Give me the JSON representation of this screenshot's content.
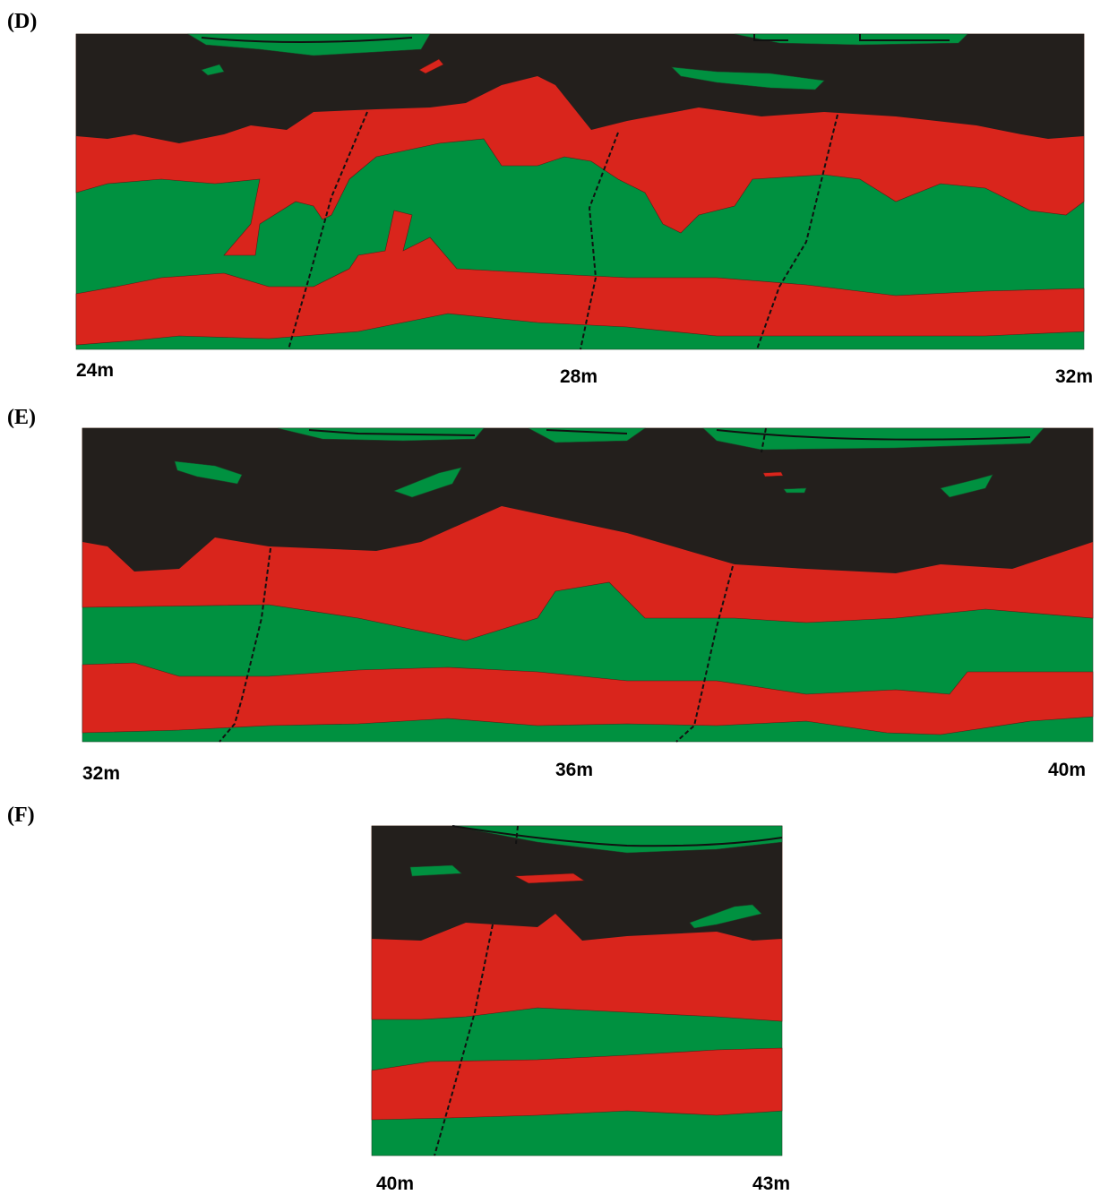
{
  "panels": [
    {
      "label": "(D)",
      "distances": [
        "24m",
        "28m",
        "32m"
      ]
    },
    {
      "label": "(E)",
      "distances": [
        "32m",
        "36m",
        "40m"
      ]
    },
    {
      "label": "(F)",
      "distances": [
        "40m",
        "43m"
      ]
    }
  ]
}
